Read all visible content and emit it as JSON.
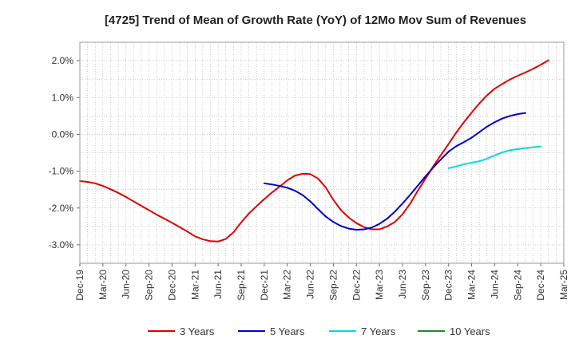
{
  "chart_data": {
    "type": "line",
    "title": "[4725]  Trend of Mean of Growth Rate (YoY) of 12Mo Mov Sum of Revenues",
    "xlabel": "",
    "ylabel": "",
    "ylim": [
      -3.5,
      2.5
    ],
    "yticks": [
      2.0,
      1.0,
      0.0,
      -1.0,
      -2.0,
      -3.0
    ],
    "ytick_labels": [
      "2.0%",
      "1.0%",
      "0.0%",
      "-1.0%",
      "-2.0%",
      "-3.0%"
    ],
    "x_tick_labels": [
      "Dec-19",
      "Mar-20",
      "Jun-20",
      "Sep-20",
      "Dec-20",
      "Mar-21",
      "Jun-21",
      "Sep-21",
      "Dec-21",
      "Mar-22",
      "Jun-22",
      "Sep-22",
      "Dec-22",
      "Mar-23",
      "Jun-23",
      "Sep-23",
      "Dec-23",
      "Mar-24",
      "Jun-24",
      "Sep-24",
      "Dec-24",
      "Mar-25"
    ],
    "x_start": "Dec-19",
    "months_total": 63,
    "grid": true,
    "legend_position": "bottom",
    "series": [
      {
        "name": "3 Years",
        "color": "#dd0000",
        "start_month_index": 0,
        "values": [
          -1.27,
          -1.29,
          -1.33,
          -1.4,
          -1.49,
          -1.59,
          -1.7,
          -1.82,
          -1.94,
          -2.06,
          -2.18,
          -2.29,
          -2.4,
          -2.52,
          -2.64,
          -2.77,
          -2.85,
          -2.9,
          -2.91,
          -2.84,
          -2.66,
          -2.39,
          -2.15,
          -1.95,
          -1.76,
          -1.58,
          -1.42,
          -1.25,
          -1.12,
          -1.07,
          -1.08,
          -1.2,
          -1.44,
          -1.78,
          -2.06,
          -2.26,
          -2.41,
          -2.52,
          -2.58,
          -2.58,
          -2.5,
          -2.38,
          -2.17,
          -1.88,
          -1.53,
          -1.2,
          -0.87,
          -0.56,
          -0.26,
          0.05,
          0.33,
          0.59,
          0.84,
          1.06,
          1.24,
          1.37,
          1.49,
          1.59,
          1.68,
          1.78,
          1.89,
          2.01
        ]
      },
      {
        "name": "5 Years",
        "color": "#0000cc",
        "start_month_index": 24,
        "values": [
          -1.33,
          -1.36,
          -1.4,
          -1.45,
          -1.53,
          -1.65,
          -1.82,
          -2.03,
          -2.23,
          -2.38,
          -2.49,
          -2.56,
          -2.59,
          -2.58,
          -2.53,
          -2.43,
          -2.29,
          -2.1,
          -1.88,
          -1.64,
          -1.39,
          -1.14,
          -0.9,
          -0.68,
          -0.47,
          -0.32,
          -0.21,
          -0.09,
          0.06,
          0.21,
          0.33,
          0.43,
          0.5,
          0.55,
          0.58
        ]
      },
      {
        "name": "7 Years",
        "color": "#00dddd",
        "start_month_index": 48,
        "values": [
          -0.92,
          -0.87,
          -0.81,
          -0.77,
          -0.73,
          -0.66,
          -0.57,
          -0.49,
          -0.43,
          -0.4,
          -0.37,
          -0.35,
          -0.33
        ]
      },
      {
        "name": "10 Years",
        "color": "#228822",
        "start_month_index": 63,
        "values": []
      }
    ]
  }
}
